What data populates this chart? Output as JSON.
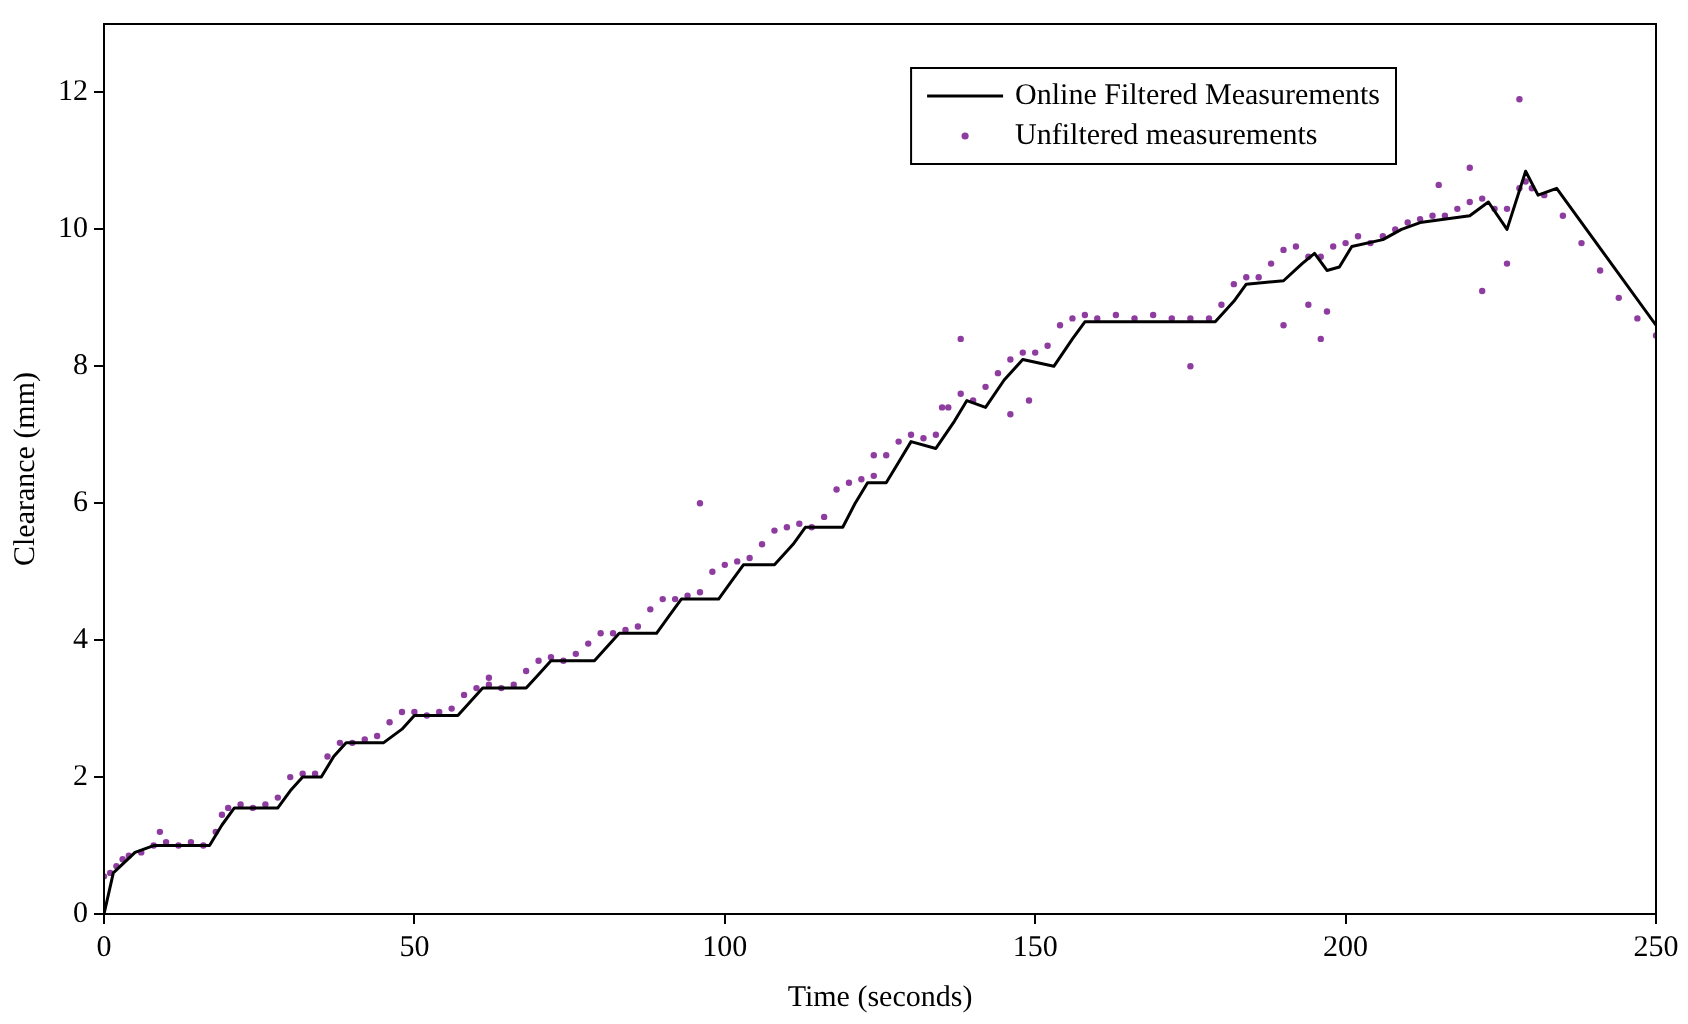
{
  "chart_data": {
    "type": "line",
    "xlabel": "Time (seconds)",
    "ylabel": "Clearance (mm)",
    "xlim": [
      0,
      250
    ],
    "xticks": [
      0,
      50,
      100,
      150,
      200,
      250
    ],
    "ylim": [
      0,
      13
    ],
    "yticks": [
      0,
      2,
      4,
      6,
      8,
      10,
      12
    ],
    "legend": "top right",
    "grid": false,
    "series": [
      {
        "name": "Online Filtered Measurements",
        "type": "line",
        "color": "#000000",
        "marker": "none",
        "x": [
          0,
          1.5,
          5,
          8,
          17,
          19,
          21,
          28,
          30,
          32,
          35,
          37,
          39,
          45,
          48,
          50,
          57,
          59,
          61,
          68,
          70,
          72,
          79,
          81,
          83,
          89,
          91,
          93,
          99,
          101,
          103,
          108,
          111,
          113,
          119,
          121,
          123,
          126,
          128,
          130,
          134,
          137,
          139,
          142,
          145,
          148,
          153,
          156,
          158,
          179,
          182,
          184,
          190,
          193,
          195,
          197,
          199,
          201,
          206,
          209,
          212,
          220,
          223,
          226,
          229,
          231,
          234,
          250
        ],
        "values": [
          0,
          0.6,
          0.9,
          1.0,
          1.0,
          1.3,
          1.55,
          1.55,
          1.8,
          2.0,
          2.0,
          2.3,
          2.5,
          2.5,
          2.7,
          2.9,
          2.9,
          3.1,
          3.3,
          3.3,
          3.5,
          3.7,
          3.7,
          3.9,
          4.1,
          4.1,
          4.35,
          4.6,
          4.6,
          4.85,
          5.1,
          5.1,
          5.4,
          5.65,
          5.65,
          6.0,
          6.3,
          6.3,
          6.6,
          6.9,
          6.8,
          7.2,
          7.5,
          7.4,
          7.8,
          8.1,
          8.0,
          8.4,
          8.65,
          8.65,
          8.95,
          9.2,
          9.25,
          9.5,
          9.65,
          9.4,
          9.45,
          9.75,
          9.85,
          10.0,
          10.1,
          10.2,
          10.4,
          10.0,
          10.85,
          10.5,
          10.6,
          8.6
        ]
      },
      {
        "name": "Unfiltered measurements",
        "type": "scatter",
        "color": "#8e3ca0",
        "marker": "circle",
        "x": [
          0,
          1,
          2,
          3,
          4,
          6,
          8,
          10,
          12,
          14,
          16,
          18,
          20,
          22,
          24,
          26,
          28,
          30,
          32,
          34,
          36,
          38,
          40,
          42,
          44,
          46,
          48,
          50,
          52,
          54,
          56,
          58,
          60,
          62,
          64,
          66,
          68,
          70,
          72,
          74,
          76,
          78,
          80,
          82,
          84,
          86,
          88,
          90,
          92,
          94,
          96,
          98,
          100,
          102,
          104,
          106,
          108,
          110,
          112,
          114,
          116,
          118,
          120,
          122,
          124,
          126,
          128,
          130,
          132,
          134,
          136,
          138,
          140,
          142,
          144,
          146,
          148,
          150,
          152,
          154,
          156,
          158,
          160,
          163,
          166,
          169,
          172,
          175,
          178,
          180,
          182,
          184,
          186,
          188,
          190,
          192,
          194,
          196,
          198,
          200,
          202,
          204,
          206,
          208,
          210,
          212,
          214,
          216,
          218,
          220,
          222,
          224,
          226,
          228,
          229,
          230,
          232,
          235,
          238,
          241,
          244,
          247,
          250,
          9,
          19,
          62,
          96,
          124,
          135,
          138,
          146,
          149,
          175,
          190,
          194,
          196,
          197,
          215,
          220,
          222,
          226,
          228
        ],
        "values": [
          0.55,
          0.6,
          0.7,
          0.8,
          0.85,
          0.9,
          1.0,
          1.05,
          1.0,
          1.05,
          1.0,
          1.2,
          1.55,
          1.6,
          1.55,
          1.6,
          1.7,
          2.0,
          2.05,
          2.05,
          2.3,
          2.5,
          2.5,
          2.55,
          2.6,
          2.8,
          2.95,
          2.95,
          2.9,
          2.95,
          3.0,
          3.2,
          3.3,
          3.35,
          3.3,
          3.35,
          3.55,
          3.7,
          3.75,
          3.7,
          3.8,
          3.95,
          4.1,
          4.1,
          4.15,
          4.2,
          4.45,
          4.6,
          4.6,
          4.65,
          4.7,
          5.0,
          5.1,
          5.15,
          5.2,
          5.4,
          5.6,
          5.65,
          5.7,
          5.65,
          5.8,
          6.2,
          6.3,
          6.35,
          6.4,
          6.7,
          6.9,
          7.0,
          6.95,
          7.0,
          7.4,
          7.6,
          7.5,
          7.7,
          7.9,
          8.1,
          8.2,
          8.2,
          8.3,
          8.6,
          8.7,
          8.75,
          8.7,
          8.75,
          8.7,
          8.75,
          8.7,
          8.7,
          8.7,
          8.9,
          9.2,
          9.3,
          9.3,
          9.5,
          9.7,
          9.75,
          9.6,
          9.6,
          9.75,
          9.8,
          9.9,
          9.8,
          9.9,
          10.0,
          10.1,
          10.15,
          10.2,
          10.2,
          10.3,
          10.4,
          10.45,
          10.3,
          10.3,
          10.6,
          10.7,
          10.6,
          10.5,
          10.2,
          9.8,
          9.4,
          9.0,
          8.7,
          8.45,
          1.2,
          1.45,
          3.45,
          6.0,
          6.7,
          7.4,
          8.4,
          7.3,
          7.5,
          8.0,
          8.6,
          8.9,
          8.4,
          8.8,
          10.65,
          10.9,
          9.1,
          9.5,
          11.9
        ]
      }
    ]
  }
}
